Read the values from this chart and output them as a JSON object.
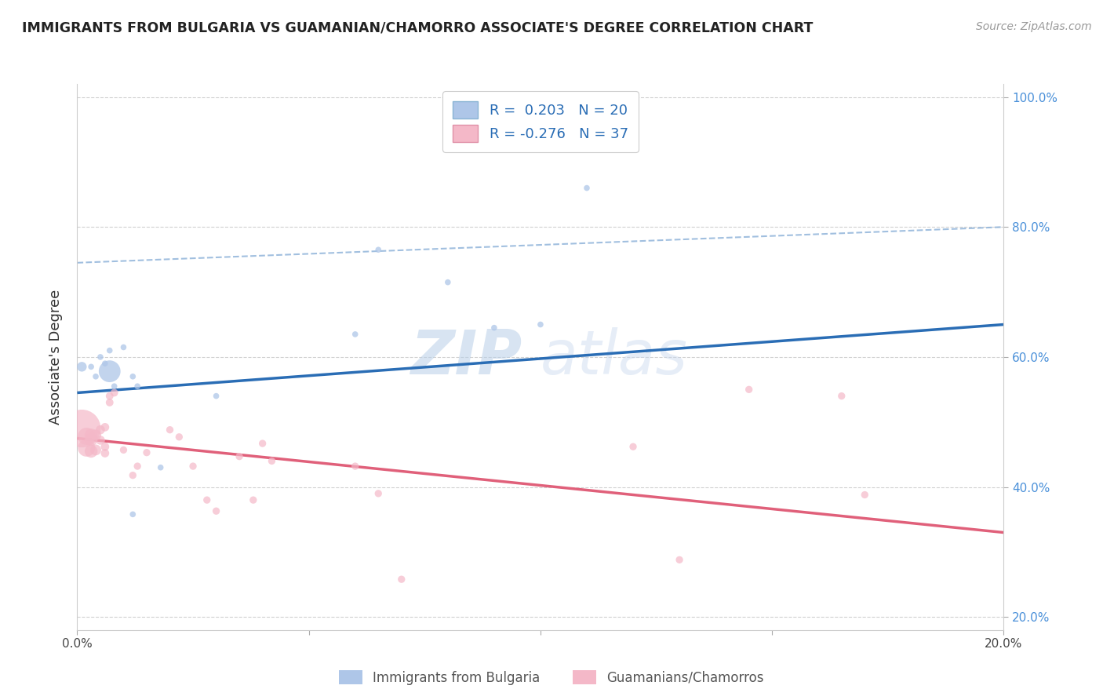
{
  "title": "IMMIGRANTS FROM BULGARIA VS GUAMANIAN/CHAMORRO ASSOCIATE'S DEGREE CORRELATION CHART",
  "source": "Source: ZipAtlas.com",
  "ylabel": "Associate's Degree",
  "xlabel": "",
  "watermark": "ZIPatlas",
  "xlim": [
    0.0,
    0.2
  ],
  "ylim": [
    0.18,
    1.02
  ],
  "right_yticks": [
    0.2,
    0.4,
    0.6,
    0.8,
    1.0
  ],
  "right_yticklabels": [
    "20.0%",
    "40.0%",
    "60.0%",
    "80.0%",
    "100.0%"
  ],
  "xticks": [
    0.0,
    0.05,
    0.1,
    0.15,
    0.2
  ],
  "xticklabels": [
    "0.0%",
    "",
    "",
    "",
    "20.0%"
  ],
  "legend_blue_r": "R =  0.203",
  "legend_blue_n": "N = 20",
  "legend_pink_r": "R = -0.276",
  "legend_pink_n": "N = 37",
  "blue_color": "#aec6e8",
  "blue_line_color": "#2a6db5",
  "pink_color": "#f4b8c8",
  "pink_line_color": "#e0607a",
  "diag_line_color": "#8ab0d8",
  "blue_points_x": [
    0.001,
    0.003,
    0.004,
    0.005,
    0.006,
    0.007,
    0.007,
    0.008,
    0.01,
    0.012,
    0.012,
    0.013,
    0.018,
    0.03,
    0.06,
    0.065,
    0.08,
    0.09,
    0.1,
    0.11
  ],
  "blue_points_y": [
    0.585,
    0.585,
    0.57,
    0.6,
    0.59,
    0.578,
    0.61,
    0.555,
    0.615,
    0.57,
    0.358,
    0.555,
    0.43,
    0.54,
    0.635,
    0.765,
    0.715,
    0.645,
    0.65,
    0.86
  ],
  "blue_sizes": [
    80,
    30,
    30,
    30,
    30,
    400,
    30,
    30,
    30,
    30,
    30,
    30,
    30,
    30,
    30,
    30,
    30,
    30,
    30,
    30
  ],
  "pink_points_x": [
    0.001,
    0.002,
    0.002,
    0.003,
    0.003,
    0.003,
    0.004,
    0.004,
    0.005,
    0.005,
    0.006,
    0.006,
    0.006,
    0.007,
    0.007,
    0.008,
    0.01,
    0.012,
    0.013,
    0.015,
    0.02,
    0.022,
    0.025,
    0.028,
    0.03,
    0.035,
    0.038,
    0.04,
    0.042,
    0.06,
    0.065,
    0.07,
    0.12,
    0.13,
    0.145,
    0.165,
    0.17
  ],
  "pink_points_y": [
    0.49,
    0.478,
    0.46,
    0.473,
    0.48,
    0.455,
    0.48,
    0.457,
    0.472,
    0.488,
    0.492,
    0.462,
    0.452,
    0.54,
    0.53,
    0.545,
    0.457,
    0.418,
    0.432,
    0.453,
    0.488,
    0.477,
    0.432,
    0.38,
    0.363,
    0.447,
    0.38,
    0.467,
    0.44,
    0.432,
    0.39,
    0.258,
    0.462,
    0.288,
    0.55,
    0.54,
    0.388
  ],
  "pink_sizes": [
    1200,
    250,
    250,
    140,
    140,
    140,
    100,
    100,
    70,
    70,
    60,
    60,
    60,
    50,
    50,
    50,
    45,
    45,
    45,
    45,
    45,
    45,
    45,
    45,
    45,
    45,
    45,
    45,
    45,
    45,
    45,
    45,
    45,
    45,
    45,
    45,
    45
  ],
  "blue_trend_x": [
    0.0,
    0.2
  ],
  "blue_trend_y": [
    0.545,
    0.65
  ],
  "pink_trend_x": [
    0.0,
    0.2
  ],
  "pink_trend_y": [
    0.475,
    0.33
  ],
  "diag_line_x": [
    0.0,
    0.2
  ],
  "diag_line_y": [
    0.745,
    0.8
  ],
  "grid_color": "#d0d0d0",
  "background_color": "#ffffff",
  "legend_label_blue": "Immigrants from Bulgaria",
  "legend_label_pink": "Guamanians/Chamorros"
}
